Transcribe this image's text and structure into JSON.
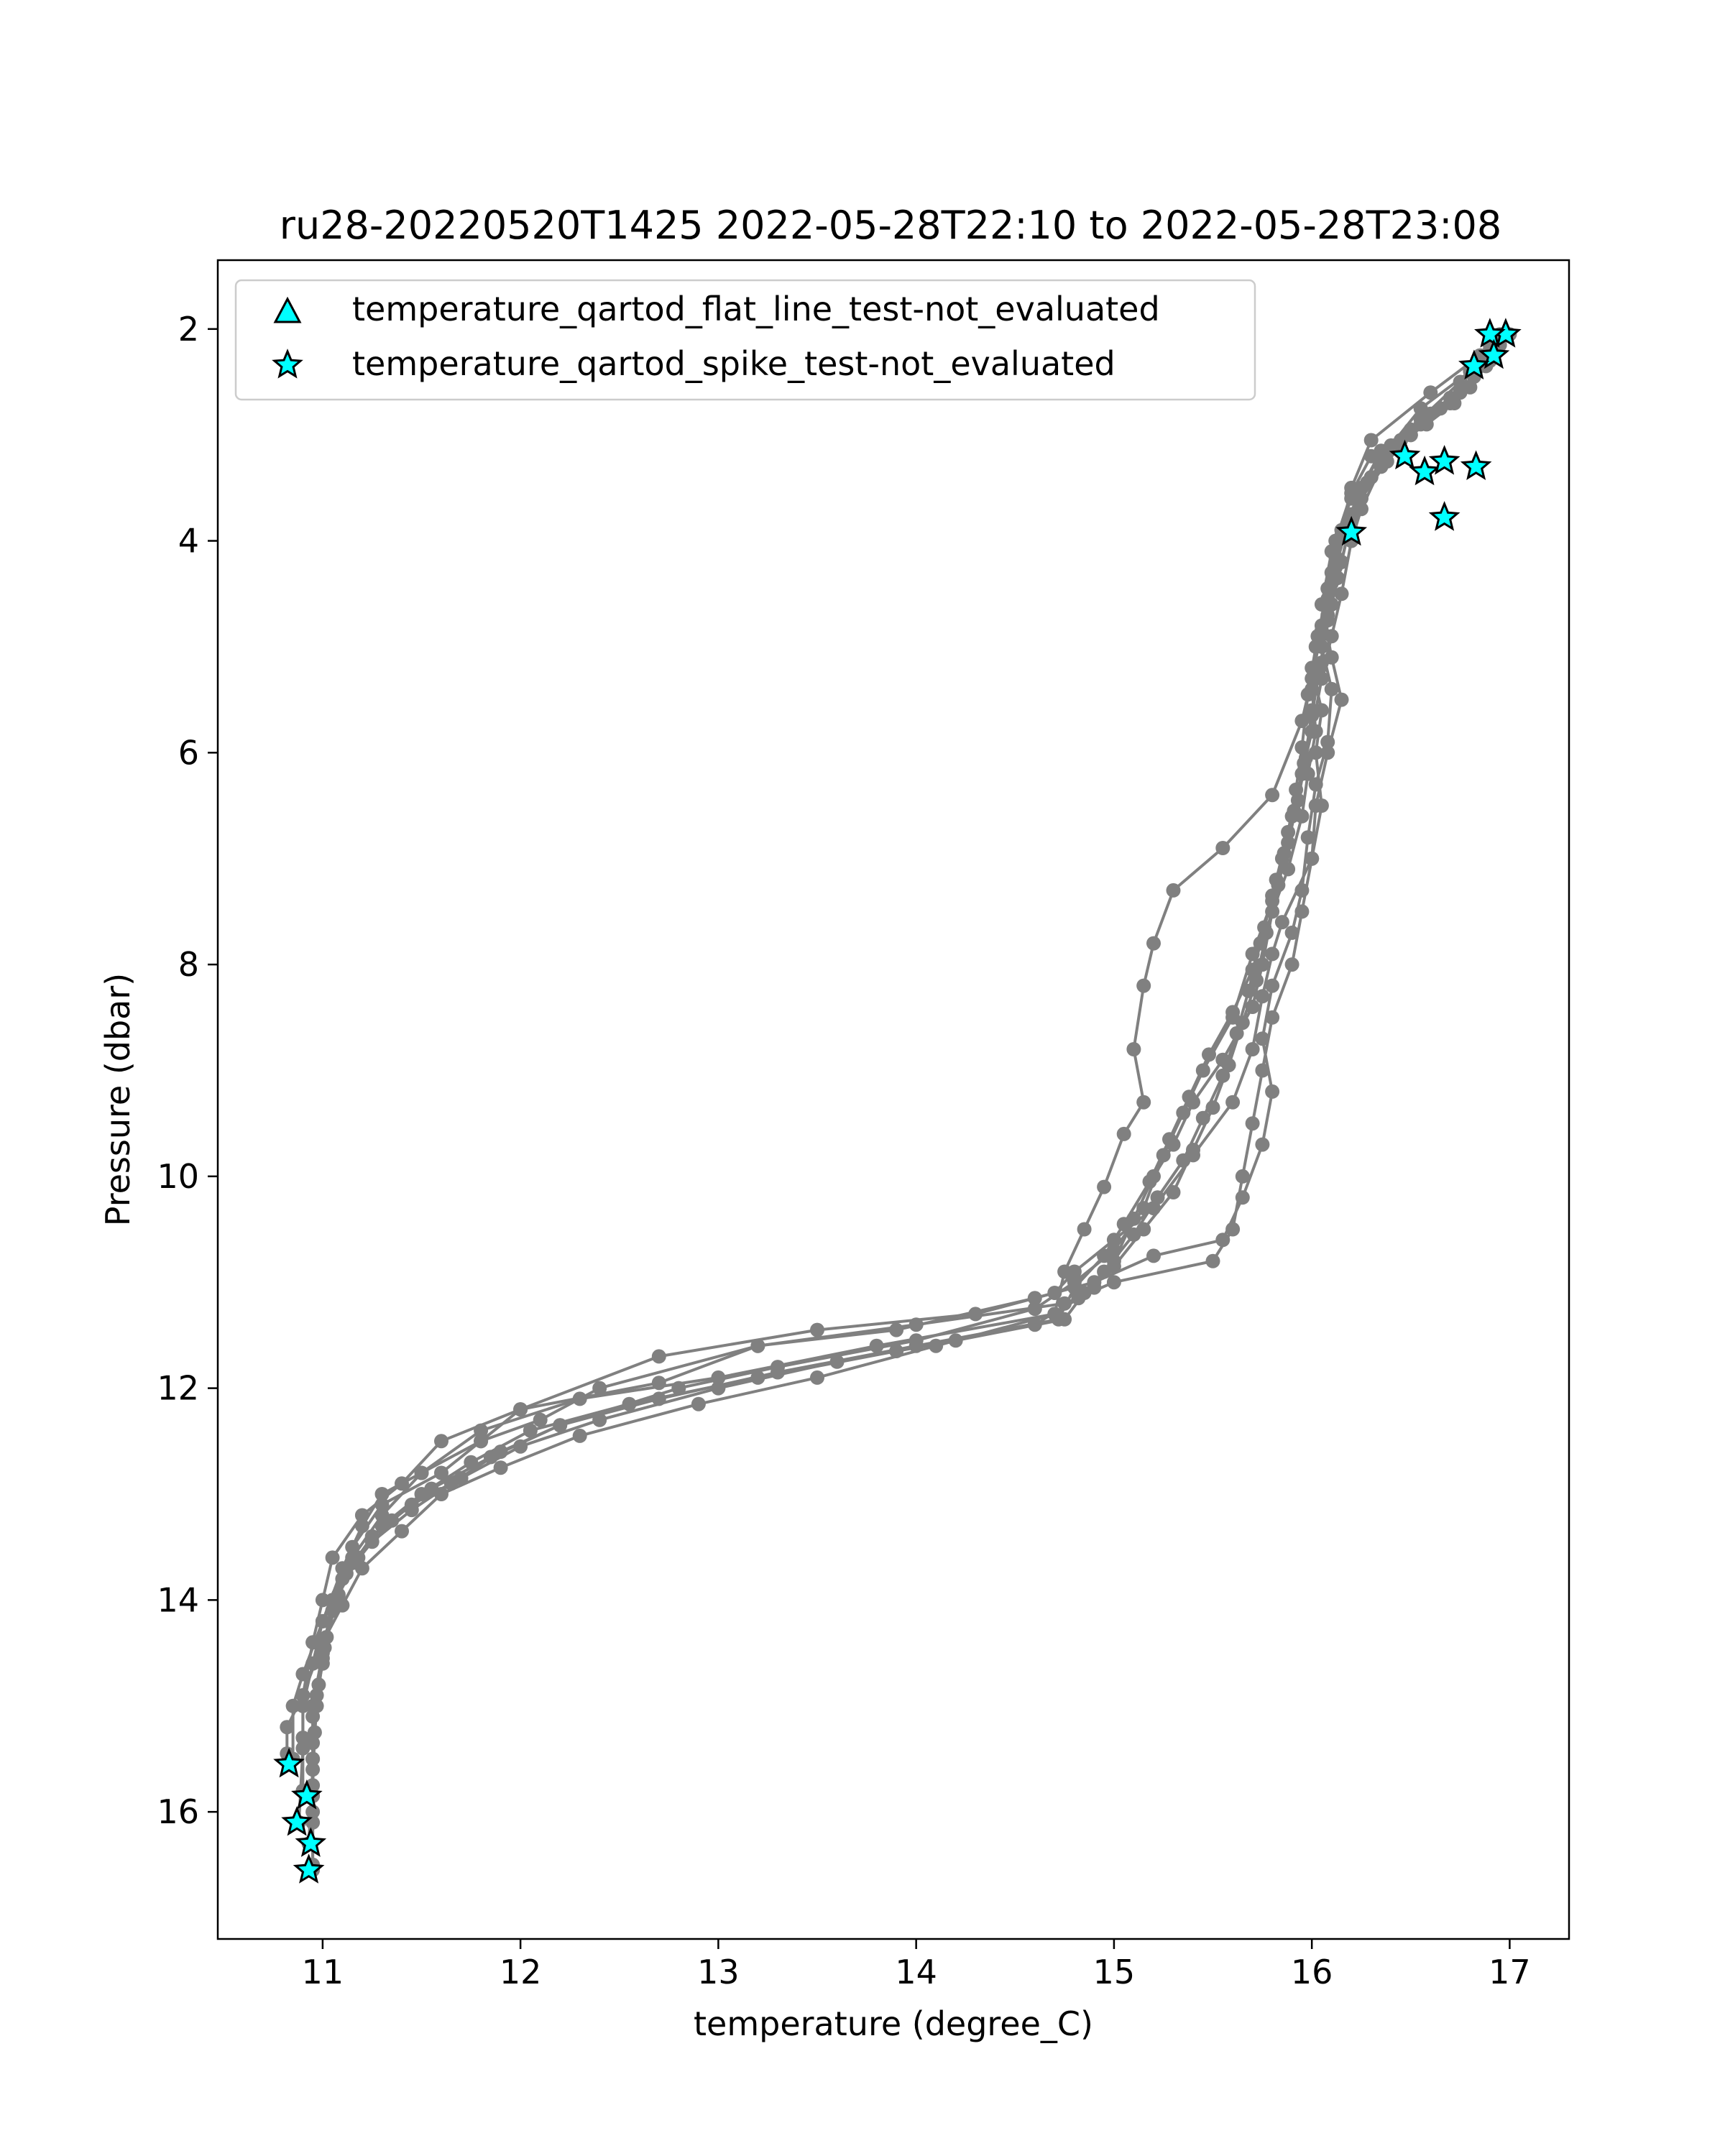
{
  "chart_data": {
    "type": "scatter",
    "title": "ru28-20220520T1425 2022-05-28T22:10 to 2022-05-28T23:08",
    "xlabel": "temperature (degree_C)",
    "ylabel": "Pressure (dbar)",
    "xlim": [
      10.47,
      17.3
    ],
    "ylim": [
      17.2,
      1.35
    ],
    "y_inverted": true,
    "grid": false,
    "legend_position": "upper-left",
    "xticks": [
      11,
      12,
      13,
      14,
      15,
      16,
      17
    ],
    "yticks": [
      2,
      4,
      6,
      8,
      10,
      12,
      14,
      16
    ],
    "profile_color": "#808080",
    "flag_color": "#00ffff",
    "legend": [
      {
        "label": "temperature_qartod_flat_line_test-not_evaluated",
        "marker": "triangle"
      },
      {
        "label": "temperature_qartod_spike_test-not_evaluated",
        "marker": "star"
      }
    ],
    "profiles": [
      [
        [
          16.95,
          2.05
        ],
        [
          16.85,
          2.25
        ],
        [
          16.6,
          2.6
        ],
        [
          16.3,
          3.05
        ],
        [
          16.2,
          3.5
        ],
        [
          16.15,
          3.9
        ],
        [
          16.1,
          4.3
        ],
        [
          16.05,
          4.8
        ],
        [
          16.0,
          5.2
        ],
        [
          16.05,
          5.6
        ],
        [
          16.02,
          6.0
        ],
        [
          16.05,
          6.5
        ],
        [
          16.0,
          7.0
        ],
        [
          15.95,
          7.5
        ],
        [
          15.9,
          8.0
        ],
        [
          15.8,
          8.5
        ],
        [
          15.75,
          9.0
        ],
        [
          15.7,
          9.5
        ],
        [
          15.65,
          10.0
        ],
        [
          15.6,
          10.5
        ],
        [
          15.5,
          10.8
        ],
        [
          15.0,
          11.0
        ],
        [
          14.75,
          11.2
        ],
        [
          14.0,
          11.4
        ],
        [
          13.2,
          11.6
        ],
        [
          12.4,
          12.0
        ],
        [
          12.1,
          12.3
        ],
        [
          11.8,
          12.5
        ],
        [
          11.6,
          12.8
        ],
        [
          11.3,
          13.1
        ],
        [
          11.15,
          13.5
        ],
        [
          11.05,
          14.0
        ],
        [
          11.0,
          14.5
        ],
        [
          10.95,
          15.0
        ],
        [
          10.95,
          15.5
        ],
        [
          10.95,
          16.0
        ],
        [
          10.95,
          16.5
        ]
      ],
      [
        [
          16.9,
          2.2
        ],
        [
          16.75,
          2.6
        ],
        [
          16.55,
          2.9
        ],
        [
          16.35,
          3.2
        ],
        [
          16.2,
          3.6
        ],
        [
          16.1,
          4.1
        ],
        [
          16.05,
          4.6
        ],
        [
          16.1,
          5.1
        ],
        [
          16.15,
          5.5
        ],
        [
          16.08,
          6.0
        ],
        [
          16.02,
          6.5
        ],
        [
          16.0,
          7.0
        ],
        [
          15.85,
          7.6
        ],
        [
          15.8,
          7.9
        ],
        [
          15.75,
          8.3
        ],
        [
          15.7,
          8.8
        ],
        [
          15.6,
          9.3
        ],
        [
          15.4,
          9.8
        ],
        [
          15.2,
          10.3
        ],
        [
          15.0,
          10.6
        ],
        [
          14.8,
          10.9
        ],
        [
          14.7,
          11.1
        ],
        [
          14.3,
          11.3
        ],
        [
          13.5,
          11.45
        ],
        [
          12.7,
          11.7
        ],
        [
          12.0,
          12.2
        ],
        [
          11.8,
          12.5
        ],
        [
          11.5,
          12.8
        ],
        [
          11.3,
          13.0
        ],
        [
          11.2,
          13.3
        ],
        [
          11.1,
          13.7
        ],
        [
          11.0,
          14.2
        ],
        [
          10.9,
          14.7
        ],
        [
          10.85,
          15.0
        ],
        [
          10.85,
          15.5
        ]
      ],
      [
        [
          16.95,
          2.1
        ],
        [
          16.8,
          2.4
        ],
        [
          16.55,
          2.75
        ],
        [
          16.4,
          3.1
        ],
        [
          16.3,
          3.4
        ],
        [
          16.2,
          3.8
        ],
        [
          16.15,
          4.2
        ],
        [
          16.1,
          4.6
        ],
        [
          16.05,
          5.0
        ],
        [
          16.1,
          5.4
        ],
        [
          16.08,
          5.9
        ],
        [
          16.02,
          6.3
        ],
        [
          15.98,
          6.8
        ],
        [
          15.95,
          7.3
        ],
        [
          15.9,
          7.7
        ],
        [
          15.8,
          8.2
        ],
        [
          15.75,
          8.7
        ],
        [
          15.8,
          9.2
        ],
        [
          15.75,
          9.7
        ],
        [
          15.65,
          10.2
        ],
        [
          15.55,
          10.6
        ],
        [
          15.2,
          10.75
        ],
        [
          14.9,
          11.0
        ],
        [
          14.6,
          11.15
        ],
        [
          13.9,
          11.45
        ],
        [
          13.2,
          11.6
        ],
        [
          12.7,
          11.95
        ],
        [
          12.0,
          12.2
        ],
        [
          11.6,
          12.5
        ],
        [
          11.4,
          12.9
        ],
        [
          11.2,
          13.2
        ],
        [
          11.05,
          13.6
        ],
        [
          11.0,
          14.0
        ],
        [
          10.95,
          14.4
        ],
        [
          10.9,
          14.9
        ],
        [
          10.9,
          15.3
        ],
        [
          10.9,
          15.8
        ]
      ],
      [
        [
          17.0,
          2.05
        ],
        [
          16.9,
          2.3
        ],
        [
          16.7,
          2.7
        ],
        [
          16.5,
          3.0
        ],
        [
          16.35,
          3.3
        ],
        [
          16.25,
          3.7
        ],
        [
          16.2,
          4.0
        ],
        [
          16.15,
          4.5
        ],
        [
          16.1,
          4.9
        ],
        [
          16.05,
          5.3
        ],
        [
          16.0,
          5.8
        ],
        [
          15.95,
          6.2
        ],
        [
          15.9,
          6.6
        ],
        [
          15.85,
          7.0
        ],
        [
          15.8,
          7.4
        ],
        [
          15.7,
          7.9
        ],
        [
          15.6,
          8.5
        ],
        [
          15.45,
          9.0
        ],
        [
          15.35,
          9.4
        ],
        [
          15.25,
          9.8
        ],
        [
          15.15,
          10.3
        ],
        [
          15.0,
          10.7
        ],
        [
          14.8,
          11.0
        ],
        [
          14.6,
          11.25
        ],
        [
          14.0,
          11.55
        ],
        [
          13.3,
          11.8
        ],
        [
          12.8,
          12.0
        ],
        [
          12.2,
          12.35
        ],
        [
          11.9,
          12.6
        ],
        [
          11.65,
          12.9
        ],
        [
          11.45,
          13.15
        ],
        [
          11.25,
          13.45
        ],
        [
          11.1,
          13.8
        ],
        [
          11.0,
          14.2
        ],
        [
          10.95,
          14.6
        ],
        [
          10.9,
          15.0
        ],
        [
          10.9,
          15.4
        ],
        [
          10.88,
          16.1
        ]
      ],
      [
        [
          16.9,
          2.15
        ],
        [
          16.75,
          2.5
        ],
        [
          16.55,
          2.85
        ],
        [
          16.35,
          3.15
        ],
        [
          16.25,
          3.5
        ],
        [
          16.15,
          3.95
        ],
        [
          16.1,
          4.4
        ],
        [
          16.05,
          4.85
        ],
        [
          16.0,
          5.3
        ],
        [
          15.95,
          5.7
        ],
        [
          15.8,
          6.4
        ],
        [
          15.55,
          6.9
        ],
        [
          15.3,
          7.3
        ],
        [
          15.2,
          7.8
        ],
        [
          15.15,
          8.2
        ],
        [
          15.1,
          8.8
        ],
        [
          15.15,
          9.3
        ],
        [
          15.05,
          9.6
        ],
        [
          14.95,
          10.1
        ],
        [
          14.85,
          10.5
        ],
        [
          14.75,
          10.9
        ],
        [
          14.7,
          11.3
        ],
        [
          13.8,
          11.6
        ],
        [
          13.0,
          11.9
        ],
        [
          12.3,
          12.1
        ],
        [
          11.8,
          12.4
        ],
        [
          11.5,
          12.8
        ],
        [
          11.3,
          13.2
        ],
        [
          11.15,
          13.6
        ],
        [
          11.05,
          14.1
        ],
        [
          11.0,
          14.6
        ],
        [
          10.95,
          15.1
        ],
        [
          10.95,
          15.6
        ],
        [
          10.93,
          16.3
        ]
      ],
      [
        [
          16.85,
          2.3
        ],
        [
          16.7,
          2.65
        ],
        [
          16.5,
          2.95
        ],
        [
          16.3,
          3.2
        ],
        [
          16.2,
          3.55
        ],
        [
          16.12,
          4.0
        ],
        [
          16.08,
          4.45
        ],
        [
          16.03,
          4.9
        ],
        [
          16.0,
          5.4
        ],
        [
          16.02,
          5.8
        ],
        [
          15.98,
          6.2
        ],
        [
          15.95,
          6.6
        ],
        [
          15.88,
          7.1
        ],
        [
          15.8,
          7.5
        ],
        [
          15.75,
          8.0
        ],
        [
          15.7,
          8.4
        ],
        [
          15.55,
          8.9
        ],
        [
          15.4,
          9.3
        ],
        [
          15.3,
          9.7
        ],
        [
          15.2,
          10.0
        ],
        [
          15.1,
          10.4
        ],
        [
          15.0,
          10.8
        ],
        [
          14.9,
          11.05
        ],
        [
          14.7,
          11.3
        ],
        [
          14.1,
          11.6
        ],
        [
          13.5,
          11.9
        ],
        [
          12.9,
          12.15
        ],
        [
          12.3,
          12.45
        ],
        [
          11.9,
          12.75
        ],
        [
          11.6,
          13.0
        ],
        [
          11.4,
          13.35
        ],
        [
          11.2,
          13.7
        ],
        [
          11.1,
          14.05
        ],
        [
          11.0,
          14.4
        ],
        [
          10.9,
          14.9
        ],
        [
          10.82,
          15.2
        ],
        [
          10.82,
          15.45
        ]
      ],
      [
        [
          16.92,
          2.25
        ],
        [
          16.8,
          2.55
        ],
        [
          16.6,
          2.8
        ],
        [
          16.45,
          3.05
        ],
        [
          16.3,
          3.4
        ],
        [
          16.18,
          3.85
        ],
        [
          16.12,
          4.25
        ],
        [
          16.08,
          4.7
        ],
        [
          16.05,
          5.15
        ],
        [
          16.0,
          5.6
        ],
        [
          15.97,
          6.05
        ],
        [
          15.93,
          6.45
        ],
        [
          15.88,
          6.85
        ],
        [
          15.83,
          7.25
        ],
        [
          15.77,
          7.7
        ],
        [
          15.72,
          8.15
        ],
        [
          15.65,
          8.55
        ],
        [
          15.58,
          8.95
        ],
        [
          15.5,
          9.35
        ],
        [
          15.4,
          9.75
        ],
        [
          15.3,
          10.15
        ],
        [
          15.15,
          10.5
        ],
        [
          15.0,
          10.85
        ],
        [
          14.85,
          11.1
        ],
        [
          14.75,
          11.35
        ],
        [
          14.2,
          11.55
        ],
        [
          13.6,
          11.75
        ],
        [
          13.0,
          12.0
        ],
        [
          12.4,
          12.3
        ],
        [
          12.0,
          12.55
        ],
        [
          11.7,
          12.85
        ],
        [
          11.45,
          13.1
        ],
        [
          11.25,
          13.4
        ],
        [
          11.12,
          13.75
        ],
        [
          11.05,
          14.1
        ],
        [
          11.0,
          14.55
        ],
        [
          10.97,
          15.0
        ],
        [
          10.95,
          15.5
        ],
        [
          10.95,
          16.1
        ],
        [
          10.95,
          16.55
        ]
      ],
      [
        [
          16.88,
          2.35
        ],
        [
          16.72,
          2.7
        ],
        [
          16.58,
          2.9
        ],
        [
          16.42,
          3.1
        ],
        [
          16.28,
          3.45
        ],
        [
          16.2,
          3.75
        ],
        [
          16.12,
          4.15
        ],
        [
          16.08,
          4.55
        ],
        [
          16.02,
          5.0
        ],
        [
          15.98,
          5.45
        ],
        [
          15.95,
          5.95
        ],
        [
          15.92,
          6.35
        ],
        [
          15.88,
          6.75
        ],
        [
          15.82,
          7.2
        ],
        [
          15.76,
          7.65
        ],
        [
          15.7,
          8.05
        ],
        [
          15.6,
          8.45
        ],
        [
          15.48,
          8.85
        ],
        [
          15.38,
          9.25
        ],
        [
          15.28,
          9.65
        ],
        [
          15.18,
          10.05
        ],
        [
          15.05,
          10.45
        ],
        [
          14.95,
          10.75
        ],
        [
          14.8,
          11.05
        ],
        [
          14.72,
          11.35
        ],
        [
          14.0,
          11.6
        ],
        [
          13.3,
          11.85
        ],
        [
          12.7,
          12.1
        ],
        [
          12.2,
          12.35
        ],
        [
          11.85,
          12.65
        ],
        [
          11.55,
          12.95
        ],
        [
          11.35,
          13.25
        ],
        [
          11.18,
          13.6
        ],
        [
          11.08,
          13.95
        ],
        [
          11.02,
          14.35
        ],
        [
          10.98,
          14.8
        ],
        [
          10.96,
          15.25
        ],
        [
          10.95,
          15.75
        ]
      ],
      [
        [
          16.95,
          2.15
        ],
        [
          16.82,
          2.45
        ],
        [
          16.65,
          2.75
        ],
        [
          16.5,
          3.0
        ],
        [
          16.38,
          3.25
        ],
        [
          16.25,
          3.6
        ],
        [
          16.18,
          3.95
        ],
        [
          16.13,
          4.35
        ],
        [
          16.08,
          4.75
        ],
        [
          16.04,
          5.2
        ],
        [
          16.0,
          5.65
        ],
        [
          15.96,
          6.1
        ],
        [
          15.91,
          6.55
        ],
        [
          15.86,
          6.95
        ],
        [
          15.8,
          7.35
        ],
        [
          15.74,
          7.8
        ],
        [
          15.68,
          8.25
        ],
        [
          15.62,
          8.65
        ],
        [
          15.55,
          9.05
        ],
        [
          15.45,
          9.45
        ],
        [
          15.35,
          9.85
        ],
        [
          15.22,
          10.2
        ],
        [
          15.1,
          10.55
        ],
        [
          14.95,
          10.9
        ],
        [
          14.82,
          11.15
        ],
        [
          14.6,
          11.4
        ],
        [
          13.9,
          11.65
        ],
        [
          13.2,
          11.9
        ],
        [
          12.55,
          12.15
        ],
        [
          12.05,
          12.4
        ],
        [
          11.75,
          12.7
        ],
        [
          11.5,
          13.0
        ],
        [
          11.3,
          13.3
        ],
        [
          11.15,
          13.65
        ],
        [
          11.06,
          14.0
        ],
        [
          11.01,
          14.45
        ],
        [
          10.97,
          14.9
        ],
        [
          10.95,
          15.35
        ],
        [
          10.95,
          15.85
        ]
      ]
    ],
    "flagged_points": [
      [
        16.98,
        2.05
      ],
      [
        16.9,
        2.05
      ],
      [
        16.92,
        2.25
      ],
      [
        16.82,
        2.35
      ],
      [
        16.47,
        3.2
      ],
      [
        16.57,
        3.35
      ],
      [
        16.67,
        3.25
      ],
      [
        16.83,
        3.3
      ],
      [
        16.67,
        3.78
      ],
      [
        16.2,
        3.92
      ],
      [
        10.83,
        15.55
      ],
      [
        10.92,
        15.85
      ],
      [
        10.87,
        16.1
      ],
      [
        10.94,
        16.3
      ],
      [
        10.93,
        16.55
      ]
    ]
  }
}
